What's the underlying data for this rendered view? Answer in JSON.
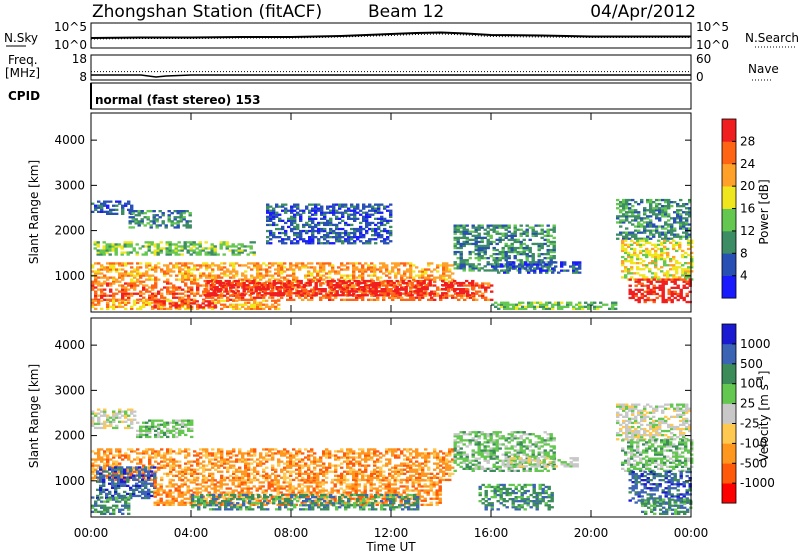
{
  "header": {
    "station": "Zhongshan Station (fitACF)",
    "beam": "Beam 12",
    "date": "04/Apr/2012"
  },
  "chart_data": [
    {
      "type": "line",
      "panel": "noise",
      "left_label": "N.Sky",
      "right_label": "N.Search",
      "left_ticks": [
        "10^5",
        "10^0"
      ],
      "right_ticks": [
        "10^5",
        "10^0"
      ],
      "x": [
        0,
        2,
        4,
        6,
        8,
        10,
        12,
        13,
        14,
        15,
        16,
        18,
        20,
        22,
        24
      ],
      "series": [
        {
          "name": "N.Sky",
          "values": [
            2.0,
            2.1,
            2.1,
            2.2,
            2.2,
            2.4,
            2.8,
            3.0,
            3.1,
            2.9,
            2.6,
            2.5,
            2.3,
            2.3,
            2.3
          ]
        },
        {
          "name": "N.Search",
          "values": [
            1.8,
            1.9,
            1.9,
            2.0,
            2.0,
            2.2,
            2.5,
            2.7,
            2.8,
            2.6,
            2.3,
            2.2,
            2.1,
            2.1,
            2.1
          ]
        }
      ],
      "ylim": [
        0,
        5
      ]
    },
    {
      "type": "line",
      "panel": "frequency",
      "left_label": "Freq.",
      "left_unit": "[MHz]",
      "right_label": "Nave",
      "left_ticks": [
        "18",
        "8"
      ],
      "right_ticks": [
        "60",
        "0"
      ],
      "x": [
        0,
        2,
        2.6,
        3,
        4,
        8,
        12,
        16,
        20,
        24
      ],
      "series": [
        {
          "name": "Freq.",
          "values": [
            10.0,
            10.0,
            9.2,
            9.6,
            10.0,
            10.0,
            10.0,
            10.0,
            10.0,
            10.0
          ]
        },
        {
          "name": "Nave",
          "values": [
            20,
            20,
            20,
            20,
            20,
            20,
            20,
            20,
            20,
            20
          ]
        }
      ]
    },
    {
      "type": "text",
      "panel": "cpid",
      "label": "CPID",
      "mode": "normal (fast stereo) 153"
    },
    {
      "type": "heatmap",
      "panel": "power",
      "ylabel": "Slant Range [km]",
      "yticks": [
        "4000",
        "3000",
        "2000",
        "1000"
      ],
      "ylim": [
        200,
        4600
      ],
      "xlim": [
        0,
        24
      ],
      "colorbar": {
        "label": "Power [dB]",
        "ticks": [
          "28",
          "24",
          "20",
          "16",
          "12",
          "8",
          "4"
        ],
        "colors": [
          "#1a1aff",
          "#2850b4",
          "#3c8c64",
          "#64c850",
          "#f0e61e",
          "#ffa028",
          "#ff6414",
          "#f01e1e"
        ]
      },
      "regions": [
        {
          "t0": 0.0,
          "t1": 1.6,
          "r0": 2350,
          "r1": 2650,
          "level": 1
        },
        {
          "t0": 1.5,
          "t1": 4.0,
          "r0": 2050,
          "r1": 2450,
          "level": 2
        },
        {
          "t0": 0.1,
          "t1": 6.5,
          "r0": 1450,
          "r1": 1750,
          "level": 3
        },
        {
          "t0": 0.0,
          "t1": 14.5,
          "r0": 850,
          "r1": 1300,
          "level": 5
        },
        {
          "t0": 0.0,
          "t1": 16.0,
          "r0": 450,
          "r1": 850,
          "level": 6
        },
        {
          "t0": 4.5,
          "t1": 13.5,
          "r0": 550,
          "r1": 900,
          "level": 7
        },
        {
          "t0": 14.0,
          "t1": 15.2,
          "r0": 550,
          "r1": 900,
          "level": 7
        },
        {
          "t0": 0.0,
          "t1": 7.5,
          "r0": 250,
          "r1": 450,
          "level": 5
        },
        {
          "t0": 2.5,
          "t1": 5.0,
          "r0": 280,
          "r1": 420,
          "level": 7
        },
        {
          "t0": 14.5,
          "t1": 18.5,
          "r0": 1100,
          "r1": 2100,
          "level": 2
        },
        {
          "t0": 16.0,
          "t1": 19.5,
          "r0": 1050,
          "r1": 1300,
          "level": 1
        },
        {
          "t0": 21.0,
          "t1": 24.0,
          "r0": 1800,
          "r1": 2700,
          "level": 2
        },
        {
          "t0": 21.2,
          "t1": 24.0,
          "r0": 900,
          "r1": 1800,
          "level": 4
        },
        {
          "t0": 21.5,
          "t1": 24.0,
          "r0": 400,
          "r1": 900,
          "level": 7
        },
        {
          "t0": 16.0,
          "t1": 21.0,
          "r0": 250,
          "r1": 400,
          "level": 3
        },
        {
          "t0": 7.0,
          "t1": 12.0,
          "r0": 1700,
          "r1": 2600,
          "level": 1
        }
      ]
    },
    {
      "type": "heatmap",
      "panel": "velocity",
      "ylabel": "Slant Range [km]",
      "yticks": [
        "4000",
        "3000",
        "2000",
        "1000"
      ],
      "ylim": [
        200,
        4600
      ],
      "xlim": [
        0,
        24
      ],
      "colorbar": {
        "label": "Velocity [m s^-1]",
        "ticks": [
          "1000",
          "500",
          "100",
          "25",
          "-25",
          "-100",
          "-500",
          "-1000"
        ],
        "colors": [
          "#ff0000",
          "#ff5a0a",
          "#ff961e",
          "#ffc850",
          "#c8c8c8",
          "#64c850",
          "#3c8c5a",
          "#3c64b4",
          "#1a1ad2"
        ]
      },
      "regions": [
        {
          "t0": 0.0,
          "t1": 1.8,
          "r0": 2150,
          "r1": 2600,
          "level": 4
        },
        {
          "t0": 1.8,
          "t1": 4.0,
          "r0": 1950,
          "r1": 2350,
          "level": 5
        },
        {
          "t0": 0.0,
          "t1": 14.5,
          "r0": 1000,
          "r1": 1700,
          "level": 2
        },
        {
          "t0": 0.2,
          "t1": 2.5,
          "r0": 600,
          "r1": 1300,
          "level": 7
        },
        {
          "t0": 0.0,
          "t1": 1.5,
          "r0": 250,
          "r1": 650,
          "level": 6
        },
        {
          "t0": 2.5,
          "t1": 14.0,
          "r0": 450,
          "r1": 1000,
          "level": 2
        },
        {
          "t0": 4.0,
          "t1": 13.0,
          "r0": 350,
          "r1": 700,
          "level": 6
        },
        {
          "t0": 14.5,
          "t1": 18.5,
          "r0": 1200,
          "r1": 2100,
          "level": 5
        },
        {
          "t0": 16.5,
          "t1": 19.5,
          "r0": 1300,
          "r1": 1500,
          "level": 4
        },
        {
          "t0": 15.5,
          "t1": 18.5,
          "r0": 350,
          "r1": 900,
          "level": 6
        },
        {
          "t0": 21.0,
          "t1": 24.0,
          "r0": 1900,
          "r1": 2700,
          "level": 4
        },
        {
          "t0": 21.2,
          "t1": 24.0,
          "r0": 1200,
          "r1": 1900,
          "level": 5
        },
        {
          "t0": 21.5,
          "t1": 24.0,
          "r0": 500,
          "r1": 1200,
          "level": 7
        },
        {
          "t0": 22.0,
          "t1": 24.0,
          "r0": 250,
          "r1": 600,
          "level": 6
        }
      ]
    }
  ],
  "x_axis": {
    "label": "Time UT",
    "ticks": [
      "00:00",
      "04:00",
      "08:00",
      "12:00",
      "16:00",
      "20:00",
      "00:00"
    ],
    "tick_hours": [
      0,
      4,
      8,
      12,
      16,
      20,
      24
    ]
  }
}
